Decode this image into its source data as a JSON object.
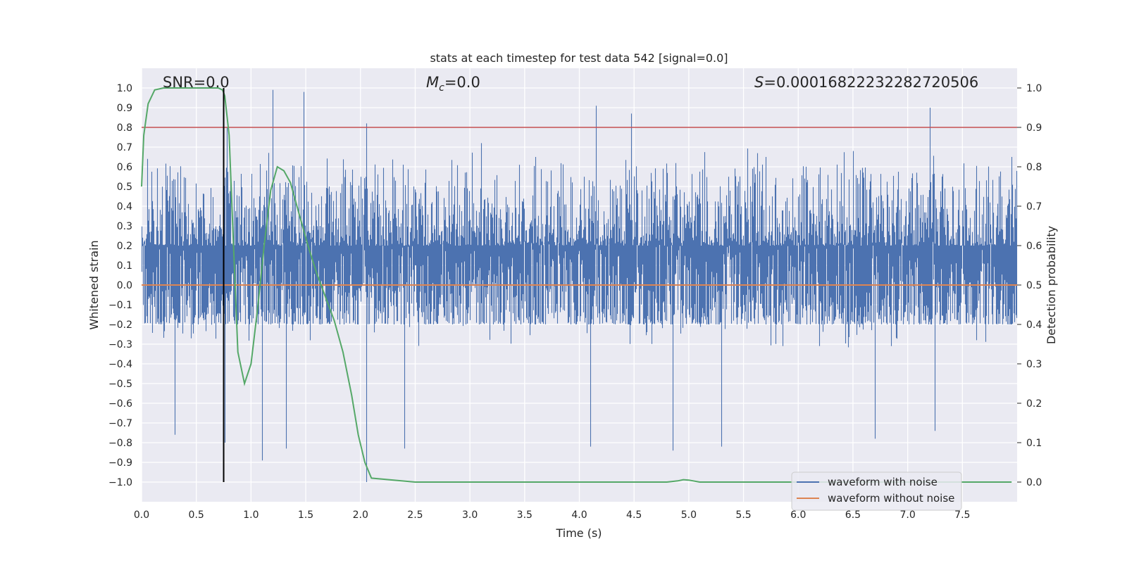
{
  "chart_data": {
    "type": "line",
    "title": "stats at each timestep for test data 542 [signal=0.0]",
    "xlabel": "Time (s)",
    "ylabel_left": "Whitened strain",
    "ylabel_right": "Detection probability",
    "xlim": [
      0.0,
      8.0
    ],
    "ylim_left": [
      -1.1,
      1.1
    ],
    "ylim_right": [
      -0.05,
      1.05
    ],
    "x_ticks": [
      "0.0",
      "0.5",
      "1.0",
      "1.5",
      "2.0",
      "2.5",
      "3.0",
      "3.5",
      "4.0",
      "4.5",
      "5.0",
      "5.5",
      "6.0",
      "6.5",
      "7.0",
      "7.5"
    ],
    "y_ticks_left": [
      "1.0",
      "0.9",
      "0.8",
      "0.7",
      "0.6",
      "0.5",
      "0.4",
      "0.3",
      "0.2",
      "0.1",
      "0.0",
      "−0.1",
      "−0.2",
      "−0.3",
      "−0.4",
      "−0.5",
      "−0.6",
      "−0.7",
      "−0.8",
      "−0.9",
      "−1.0"
    ],
    "y_ticks_right": [
      "1.0",
      "0.9",
      "0.8",
      "0.7",
      "0.6",
      "0.5",
      "0.4",
      "0.3",
      "0.2",
      "0.1",
      "0.0"
    ],
    "annotations": {
      "snr": "SNR=0.0",
      "mc_symbol": "M",
      "mc_sub": "c",
      "mc_value": "=0.0",
      "s_symbol": "S",
      "s_value": "=0.00016822232282720506"
    },
    "legend": {
      "placement": "lower-right",
      "entries": [
        {
          "label": "waveform with noise",
          "color": "#4c72b0"
        },
        {
          "label": "waveform without noise",
          "color": "#dd8452"
        }
      ]
    },
    "series": [
      {
        "name": "waveform with noise",
        "axis": "left",
        "color": "#4c72b0",
        "sample_rate_hz": 2048,
        "core_amplitude": [
          -0.2,
          0.2
        ],
        "typical_envelope": [
          -0.5,
          0.5
        ],
        "peaks": [
          {
            "x": 0.05,
            "y": 0.64
          },
          {
            "x": 0.78,
            "y": 0.8
          },
          {
            "x": 1.2,
            "y": 0.99
          },
          {
            "x": 1.48,
            "y": 0.98
          },
          {
            "x": 2.05,
            "y": 0.82
          },
          {
            "x": 3.1,
            "y": 0.72
          },
          {
            "x": 3.6,
            "y": 0.65
          },
          {
            "x": 4.15,
            "y": 0.91
          },
          {
            "x": 4.47,
            "y": 0.87
          },
          {
            "x": 5.7,
            "y": 0.65
          },
          {
            "x": 6.5,
            "y": 0.68
          },
          {
            "x": 7.2,
            "y": 0.9
          },
          {
            "x": 7.95,
            "y": 0.65
          }
        ],
        "troughs": [
          {
            "x": 0.3,
            "y": -0.76
          },
          {
            "x": 0.76,
            "y": -0.8
          },
          {
            "x": 1.1,
            "y": -0.89
          },
          {
            "x": 1.32,
            "y": -0.83
          },
          {
            "x": 2.05,
            "y": -1.0
          },
          {
            "x": 2.4,
            "y": -0.83
          },
          {
            "x": 4.1,
            "y": -0.82
          },
          {
            "x": 4.85,
            "y": -0.84
          },
          {
            "x": 5.3,
            "y": -0.82
          },
          {
            "x": 6.7,
            "y": -0.78
          },
          {
            "x": 7.25,
            "y": -0.74
          }
        ]
      },
      {
        "name": "waveform without noise",
        "axis": "left",
        "color": "#dd8452",
        "x": [
          0.0,
          8.0
        ],
        "y": [
          0.0,
          0.0
        ]
      },
      {
        "axis": "right",
        "color": "#55a868",
        "x": [
          0.0,
          0.02,
          0.06,
          0.12,
          0.2,
          0.3,
          0.4,
          0.5,
          0.6,
          0.7,
          0.74,
          0.76,
          0.8,
          0.84,
          0.88,
          0.94,
          1.0,
          1.06,
          1.12,
          1.18,
          1.24,
          1.3,
          1.36,
          1.44,
          1.52,
          1.6,
          1.68,
          1.76,
          1.84,
          1.92,
          1.98,
          2.04,
          2.1,
          2.5,
          3.0,
          3.5,
          4.0,
          4.5,
          4.8,
          4.9,
          4.95,
          5.0,
          5.1,
          5.5,
          6.0,
          6.5,
          7.0,
          7.5,
          7.95
        ],
        "y": [
          0.75,
          0.88,
          0.96,
          0.995,
          1.0,
          1.0,
          1.0,
          1.0,
          1.0,
          1.0,
          0.995,
          0.98,
          0.88,
          0.6,
          0.33,
          0.25,
          0.3,
          0.44,
          0.6,
          0.74,
          0.8,
          0.79,
          0.76,
          0.68,
          0.6,
          0.53,
          0.47,
          0.41,
          0.33,
          0.22,
          0.12,
          0.05,
          0.01,
          0.0,
          0.0,
          0.0,
          0.0,
          0.0,
          0.0,
          0.003,
          0.006,
          0.005,
          0.0,
          0.0,
          0.0,
          0.0,
          0.0,
          0.0,
          0.0
        ]
      }
    ],
    "reference_lines": [
      {
        "orientation": "horizontal",
        "axis": "right",
        "value": 0.9,
        "color": "#c44e52"
      },
      {
        "orientation": "vertical",
        "value": 0.75,
        "y_from": -1.0,
        "y_to": 1.0,
        "color": "#000000"
      }
    ],
    "grid": true
  }
}
